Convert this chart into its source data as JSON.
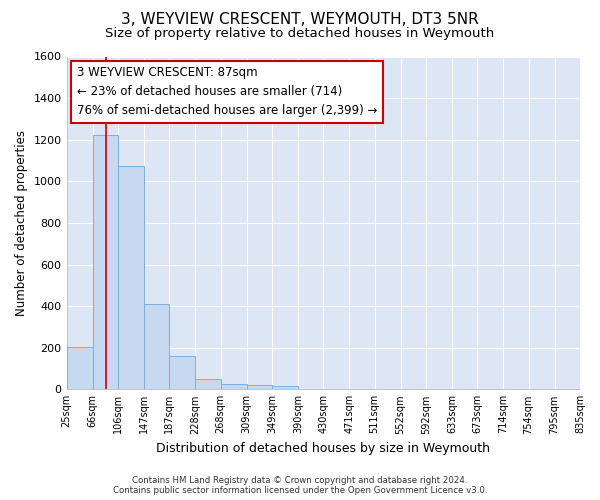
{
  "title": "3, WEYVIEW CRESCENT, WEYMOUTH, DT3 5NR",
  "subtitle": "Size of property relative to detached houses in Weymouth",
  "xlabel": "Distribution of detached houses by size in Weymouth",
  "ylabel": "Number of detached properties",
  "footer_line1": "Contains HM Land Registry data © Crown copyright and database right 2024.",
  "footer_line2": "Contains public sector information licensed under the Open Government Licence v3.0.",
  "bar_edges": [
    25,
    66,
    106,
    147,
    187,
    228,
    268,
    309,
    349,
    390,
    430,
    471,
    511,
    552,
    592,
    633,
    673,
    714,
    754,
    795,
    835
  ],
  "bar_heights": [
    205,
    1225,
    1075,
    410,
    160,
    50,
    27,
    20,
    15,
    0,
    0,
    0,
    0,
    0,
    0,
    0,
    0,
    0,
    0,
    0
  ],
  "bar_color": "#c6d9f0",
  "bar_edge_color": "#7aafe0",
  "property_line_x": 87,
  "property_line_color": "#cc0000",
  "annotation_text": "3 WEYVIEW CRESCENT: 87sqm\n← 23% of detached houses are smaller (714)\n76% of semi-detached houses are larger (2,399) →",
  "annotation_box_color": "#cc0000",
  "ylim": [
    0,
    1600
  ],
  "yticks": [
    0,
    200,
    400,
    600,
    800,
    1000,
    1200,
    1400,
    1600
  ],
  "bg_color": "#ffffff",
  "plot_bg_color": "#dce6f5",
  "grid_color": "#ffffff",
  "title_fontsize": 11,
  "subtitle_fontsize": 9.5,
  "tick_labels": [
    "25sqm",
    "66sqm",
    "106sqm",
    "147sqm",
    "187sqm",
    "228sqm",
    "268sqm",
    "309sqm",
    "349sqm",
    "390sqm",
    "430sqm",
    "471sqm",
    "511sqm",
    "552sqm",
    "592sqm",
    "633sqm",
    "673sqm",
    "714sqm",
    "754sqm",
    "795sqm",
    "835sqm"
  ]
}
